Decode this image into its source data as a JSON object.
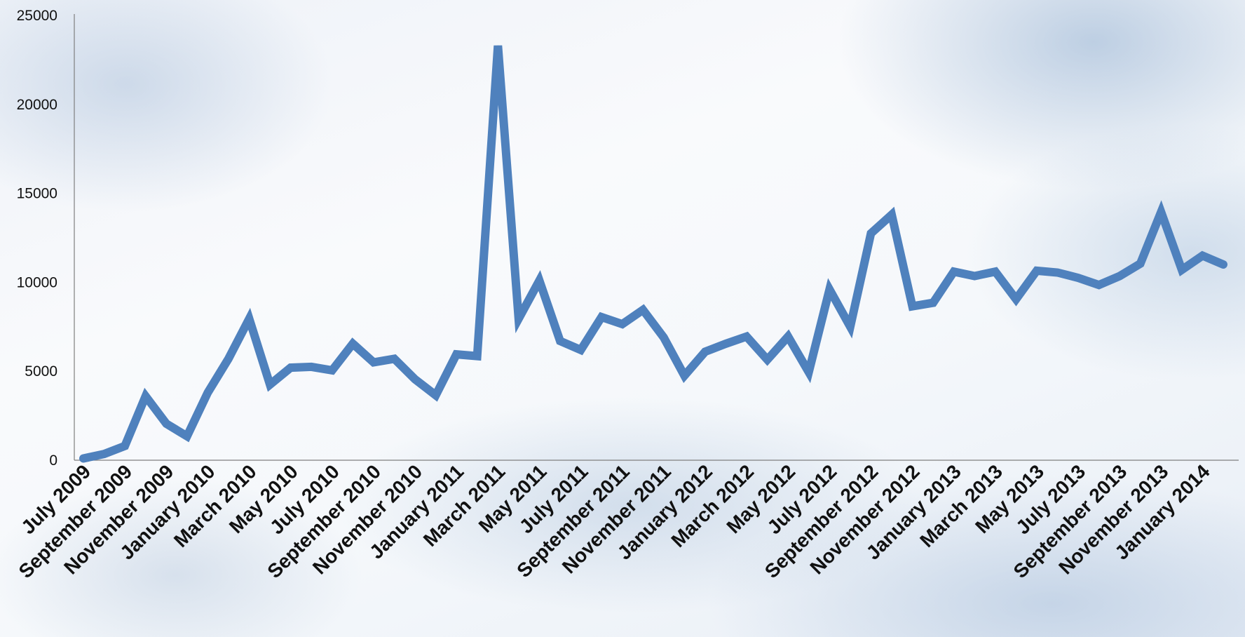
{
  "chart_data": {
    "type": "line",
    "title": "",
    "xlabel": "",
    "ylabel": "",
    "ylim": [
      0,
      25000
    ],
    "yticks": [
      0,
      5000,
      10000,
      15000,
      20000,
      25000
    ],
    "grid": false,
    "legend": "none",
    "line_color": "#4f81bd",
    "x_tick_labels": [
      "July 2009",
      "September 2009",
      "November 2009",
      "January 2010",
      "March 2010",
      "May 2010",
      "July 2010",
      "September 2010",
      "November 2010",
      "January 2011",
      "March 2011",
      "May 2011",
      "July 2011",
      "September 2011",
      "November 2011",
      "January 2012",
      "March 2012",
      "May 2012",
      "July 2012",
      "September 2012",
      "November 2012",
      "January 2013",
      "March 2013",
      "May 2013",
      "July 2013",
      "September 2013",
      "November 2013",
      "January 2014"
    ],
    "x": [
      "2009-07",
      "2009-08",
      "2009-09",
      "2009-10",
      "2009-11",
      "2009-12",
      "2010-01",
      "2010-02",
      "2010-03",
      "2010-04",
      "2010-05",
      "2010-06",
      "2010-07",
      "2010-08",
      "2010-09",
      "2010-10",
      "2010-11",
      "2010-12",
      "2011-01",
      "2011-02",
      "2011-03",
      "2011-04",
      "2011-05",
      "2011-06",
      "2011-07",
      "2011-08",
      "2011-09",
      "2011-10",
      "2011-11",
      "2011-12",
      "2012-01",
      "2012-02",
      "2012-03",
      "2012-04",
      "2012-05",
      "2012-06",
      "2012-07",
      "2012-08",
      "2012-09",
      "2012-10",
      "2012-11",
      "2012-12",
      "2013-01",
      "2013-02",
      "2013-03",
      "2013-04",
      "2013-05",
      "2013-06",
      "2013-07",
      "2013-08",
      "2013-09",
      "2013-10",
      "2013-11",
      "2013-12",
      "2014-01",
      "2014-02"
    ],
    "series": [
      {
        "values": [
          100,
          350,
          800,
          3600,
          2050,
          1350,
          3800,
          5700,
          7950,
          4250,
          5200,
          5250,
          5050,
          6550,
          5500,
          5700,
          4550,
          3650,
          5950,
          5850,
          23300,
          7950,
          10100,
          6700,
          6200,
          8050,
          7650,
          8450,
          6900,
          4750,
          6100,
          6550,
          6950,
          5650,
          6950,
          4950,
          9600,
          7500,
          12750,
          13800,
          8650,
          8850,
          10600,
          10350,
          10600,
          9050,
          10650,
          10550,
          10250,
          9850,
          10350,
          11050,
          13950,
          10700,
          11500,
          11000
        ]
      }
    ]
  }
}
